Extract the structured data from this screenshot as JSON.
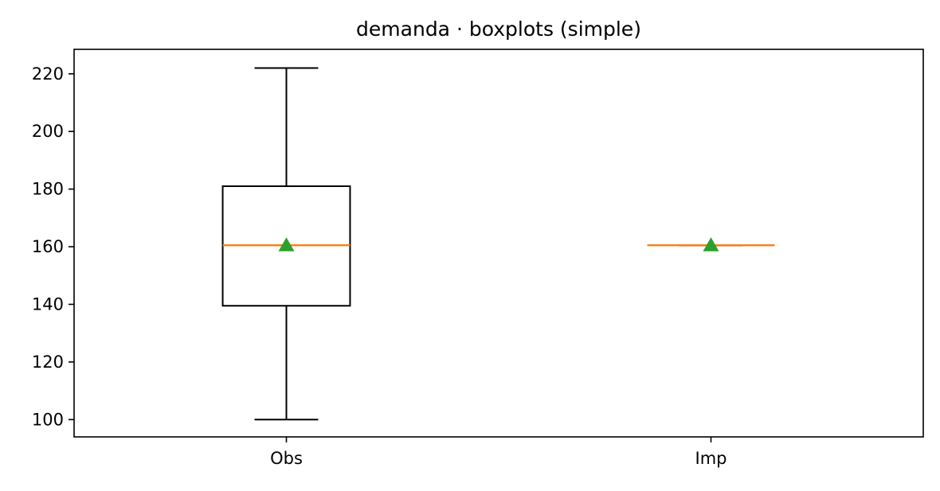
{
  "chart_data": {
    "type": "boxplot",
    "title": "demanda · boxplots (simple)",
    "xlabel": "",
    "ylabel": "",
    "categories": [
      "Obs",
      "Imp"
    ],
    "boxes": [
      {
        "category": "Obs",
        "whisker_low": 100,
        "q1": 139.5,
        "median": 160.5,
        "mean": 160.5,
        "q3": 181,
        "whisker_high": 222
      },
      {
        "category": "Imp",
        "whisker_low": 160.5,
        "q1": 160.5,
        "median": 160.5,
        "mean": 160.5,
        "q3": 160.5,
        "whisker_high": 160.5
      }
    ],
    "ylim": [
      94,
      228.5
    ],
    "yticks": [
      100,
      120,
      140,
      160,
      180,
      200,
      220
    ],
    "grid": false,
    "colors": {
      "box": "#000000",
      "median": "#ff7f0e",
      "mean": "#2ca02c"
    }
  }
}
